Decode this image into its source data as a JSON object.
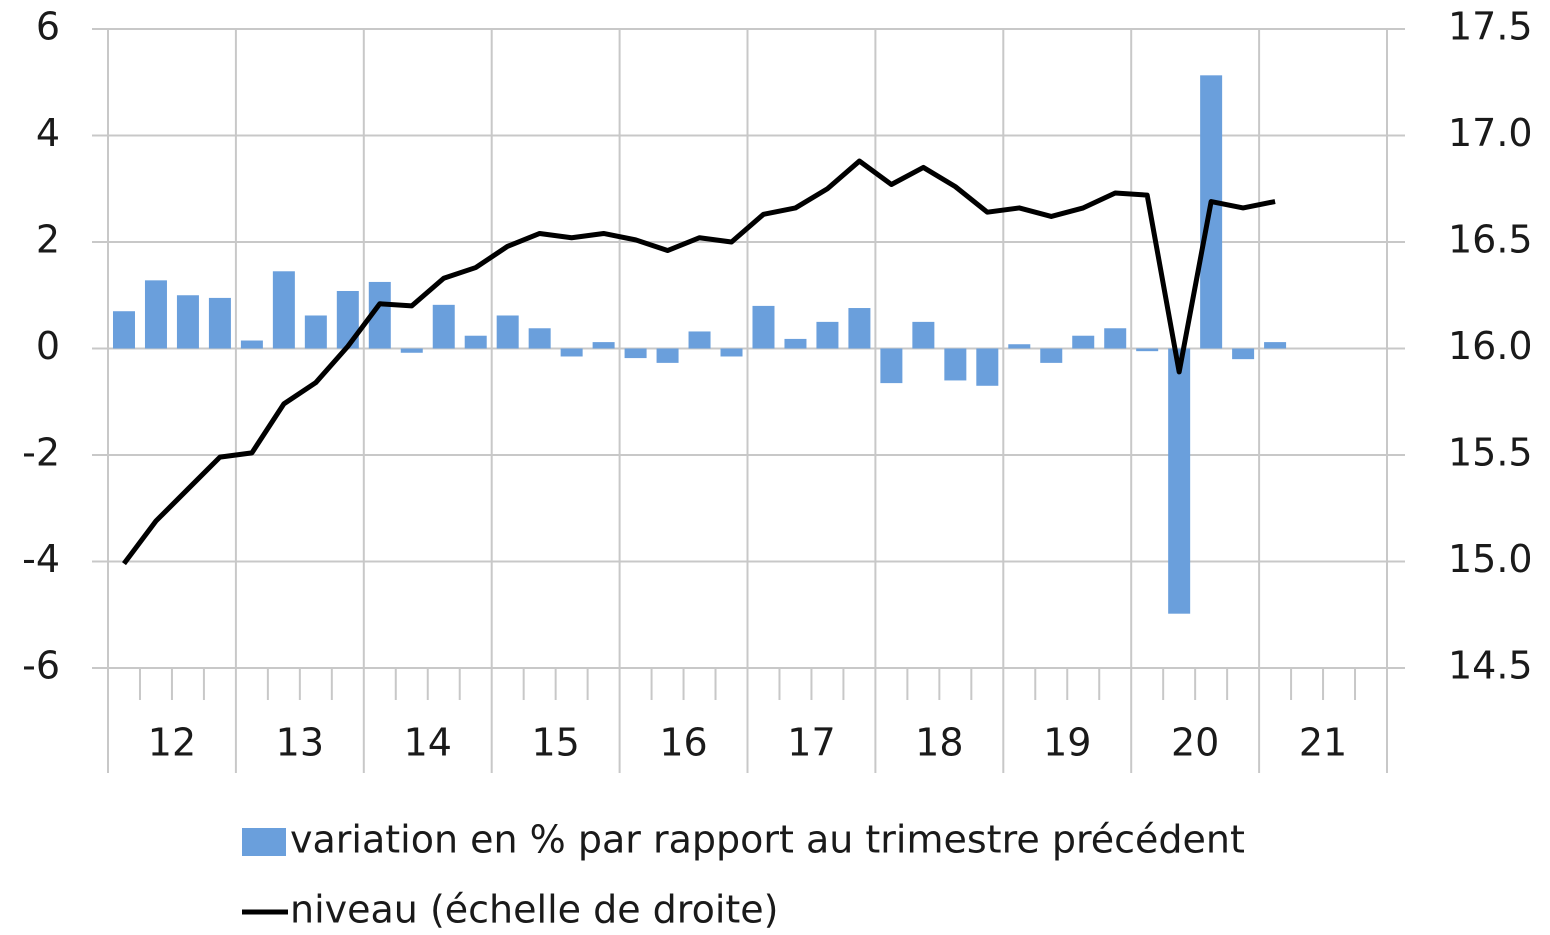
{
  "chart_data": {
    "type": "bar_line",
    "categories": [
      null,
      null,
      null,
      null,
      null,
      null,
      null,
      null,
      null,
      null,
      null,
      null,
      null,
      null,
      null,
      null,
      null,
      null,
      null,
      null,
      null,
      null,
      null,
      null,
      null,
      null,
      null,
      null,
      null,
      null,
      null,
      null,
      null,
      null,
      null,
      null,
      null,
      null,
      null,
      null
    ],
    "year_labels": [
      "12",
      "13",
      "14",
      "15",
      "16",
      "17",
      "18",
      "19",
      "20",
      "21"
    ],
    "series": [
      {
        "name": "variation en % par rapport au trimestre précédent",
        "type": "bar",
        "color": "#6a9fdc",
        "values": [
          0.7,
          1.28,
          1.0,
          0.95,
          0.15,
          1.45,
          0.62,
          1.08,
          1.25,
          -0.08,
          0.82,
          0.24,
          0.62,
          0.38,
          -0.15,
          0.12,
          -0.18,
          -0.27,
          0.32,
          -0.15,
          0.8,
          0.18,
          0.5,
          0.76,
          -0.65,
          0.5,
          -0.6,
          -0.7,
          0.08,
          -0.27,
          0.24,
          0.38,
          -0.05,
          -4.98,
          5.13,
          -0.2,
          0.12,
          null,
          null,
          null
        ]
      },
      {
        "name": "niveau (échelle de droite)",
        "type": "line",
        "axis": "y2",
        "color": "#000000",
        "values": [
          14.99,
          15.19,
          15.34,
          15.49,
          15.51,
          15.74,
          15.84,
          16.01,
          16.21,
          16.2,
          16.33,
          16.38,
          16.48,
          16.54,
          16.52,
          16.54,
          16.51,
          16.46,
          16.52,
          16.5,
          16.63,
          16.66,
          16.75,
          16.88,
          16.77,
          16.85,
          16.76,
          16.64,
          16.66,
          16.62,
          16.66,
          16.73,
          16.72,
          15.89,
          16.69,
          16.66,
          16.69,
          null,
          null,
          null
        ]
      }
    ],
    "ylim": [
      -6,
      6
    ],
    "yticks": [
      6,
      4,
      2,
      0,
      -2,
      -4,
      -6
    ],
    "y2lim": [
      14.5,
      17.5
    ],
    "y2ticks": [
      {
        "value": 17.5,
        "label": "17.5"
      },
      {
        "value": 17,
        "label": "17.0"
      },
      {
        "value": 16.5,
        "label": "16.5"
      },
      {
        "value": 16,
        "label": "16.0"
      },
      {
        "value": 15.5,
        "label": "15.5"
      },
      {
        "value": 15,
        "label": "15.0"
      },
      {
        "value": 14.5,
        "label": "14.5"
      }
    ],
    "grid": true,
    "legend": "bottom"
  }
}
